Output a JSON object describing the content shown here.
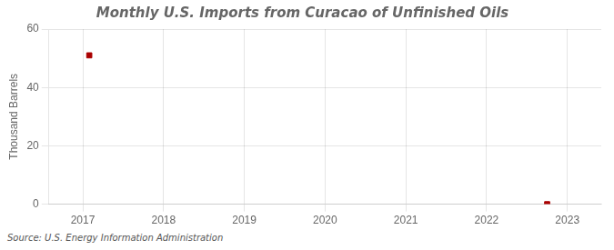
{
  "chart_data": {
    "type": "scatter",
    "title": "Monthly U.S. Imports from Curacao of Unfinished Oils",
    "y_label": "Thousand Barrels",
    "source": "Source: U.S. Energy Information Administration",
    "x": [
      2017.08,
      2022.75
    ],
    "values": [
      51,
      0
    ],
    "color": "#aa0000",
    "marker": "square",
    "xlim": [
      2016.58,
      2023.42
    ],
    "xticks": [
      2017,
      2018,
      2019,
      2020,
      2021,
      2022,
      2023
    ],
    "ylim": [
      0,
      60
    ],
    "yticks": [
      0,
      20,
      40,
      60
    ],
    "grid": true
  }
}
